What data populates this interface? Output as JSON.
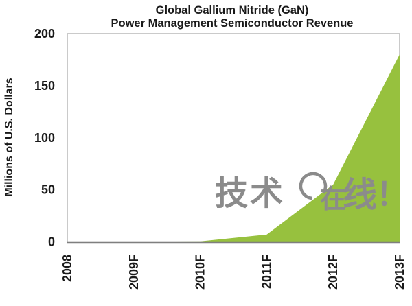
{
  "title": {
    "line1": "Global Gallium Nitride (GaN)",
    "line2": "Power Management Semiconductor Revenue"
  },
  "chart_data": {
    "type": "area",
    "title": "Global Gallium Nitride (GaN) Power Management Semiconductor Revenue",
    "categories": [
      "2008",
      "2009F",
      "2010F",
      "2011F",
      "2012F",
      "2013F"
    ],
    "values": [
      0,
      0,
      0.5,
      7,
      55,
      180
    ],
    "xlabel": "",
    "ylabel": "Millions of U.S. Dollars",
    "ylim": [
      0,
      200
    ],
    "yticks": [
      0,
      50,
      100,
      150,
      200
    ],
    "grid": false,
    "legend": "none"
  },
  "watermark": {
    "full_text": "技术在线！",
    "part_tech": "技术",
    "part_zai": "在",
    "part_xian": "线",
    "part_exclaim": "！"
  },
  "colors": {
    "area_green": "#97c13e",
    "axis_line": "#7f7f7f",
    "plot_border": "#a6a6a6",
    "text": "#1a1a1a",
    "watermark_gray": "#8b8b8b",
    "background": "#ffffff"
  }
}
